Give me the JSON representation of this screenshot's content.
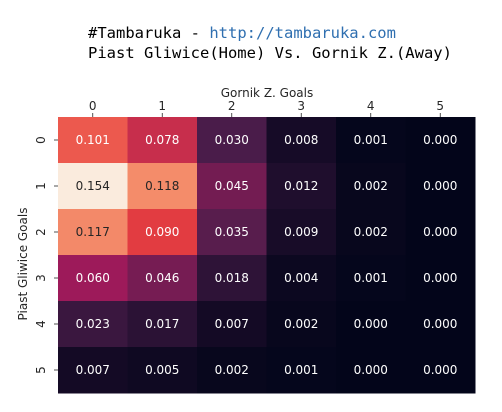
{
  "header": {
    "title_prefix": "#Tambaruka - ",
    "title_link": "http://tambaruka.com",
    "subtitle": "Piast Gliwice(Home) Vs. Gornik Z.(Away)"
  },
  "colors": {
    "scale": [
      "#03051a",
      "#4c1d4b",
      "#a11a5b",
      "#e83f3f",
      "#f69c73",
      "#faebdd"
    ],
    "link": "#2f6fb0"
  },
  "chart_data": {
    "type": "heatmap",
    "xlabel": "Gornik Z. Goals",
    "ylabel": "Piast Gliwice Goals",
    "x_categories": [
      "0",
      "1",
      "2",
      "3",
      "4",
      "5"
    ],
    "y_categories": [
      "0",
      "1",
      "2",
      "3",
      "4",
      "5"
    ],
    "x_axis_position": "top",
    "values": [
      [
        0.101,
        0.078,
        0.03,
        0.008,
        0.001,
        0.0
      ],
      [
        0.154,
        0.118,
        0.045,
        0.012,
        0.002,
        0.0
      ],
      [
        0.117,
        0.09,
        0.035,
        0.009,
        0.002,
        0.0
      ],
      [
        0.06,
        0.046,
        0.018,
        0.004,
        0.001,
        0.0
      ],
      [
        0.023,
        0.017,
        0.007,
        0.002,
        0.0,
        0.0
      ],
      [
        0.007,
        0.005,
        0.002,
        0.001,
        0.0,
        0.0
      ]
    ],
    "value_format": "0.000",
    "colormap": "rocket",
    "vmin": 0.0,
    "vmax": 0.154,
    "grid": false,
    "legend": "none"
  }
}
